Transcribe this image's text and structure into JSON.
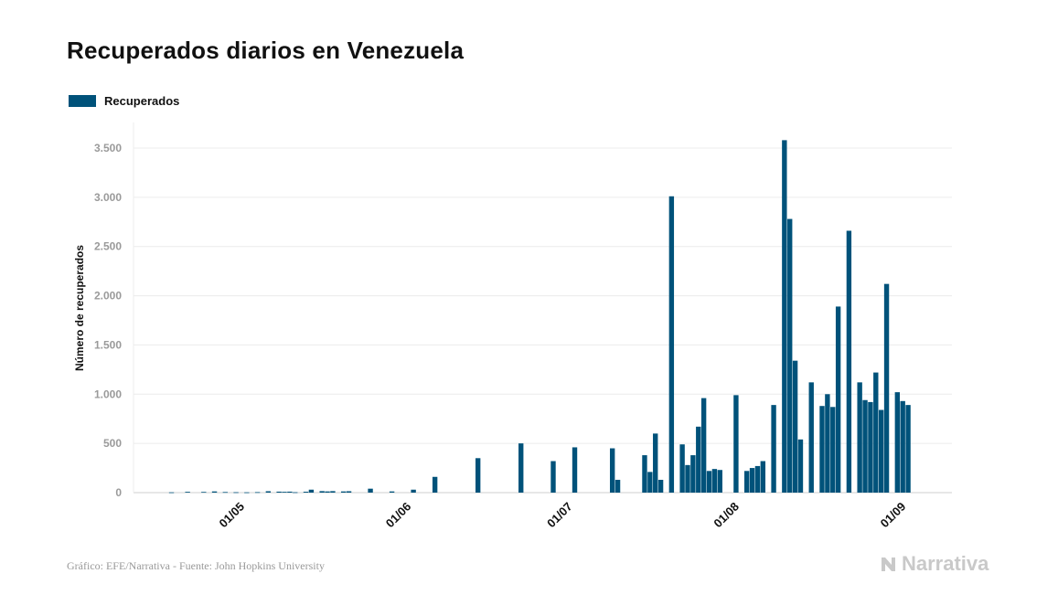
{
  "title": "Recuperados diarios en Venezuela",
  "legend": {
    "label": "Recuperados",
    "color": "#00527a"
  },
  "footer": {
    "source": "Gráfico: EFE/Narrativa - Fuente: John Hopkins University",
    "brand": "Narrativa"
  },
  "chart_data": {
    "type": "bar",
    "title": "Recuperados diarios en Venezuela",
    "ylabel": "Número de recuperados",
    "xlabel": "",
    "ylim": [
      0,
      3700
    ],
    "yticks": [
      0,
      500,
      1000,
      1500,
      2000,
      2500,
      3000,
      3500
    ],
    "ytick_labels": [
      "0",
      "500",
      "1.000",
      "1.500",
      "2.000",
      "2.500",
      "3.000",
      "3.500"
    ],
    "xticks": [
      {
        "label": "01/05",
        "day": 22
      },
      {
        "label": "01/06",
        "day": 53
      },
      {
        "label": "01/07",
        "day": 83
      },
      {
        "label": "01/08",
        "day": 114
      },
      {
        "label": "01/09",
        "day": 145
      }
    ],
    "x_domain": [
      5,
      160
    ],
    "grid": true,
    "legend_position": "top-left",
    "series": [
      {
        "name": "Recuperados",
        "color": "#00527a",
        "points": [
          [
            9,
            3
          ],
          [
            12,
            8
          ],
          [
            15,
            7
          ],
          [
            17,
            12
          ],
          [
            19,
            6
          ],
          [
            21,
            4
          ],
          [
            23,
            3
          ],
          [
            25,
            5
          ],
          [
            27,
            14
          ],
          [
            29,
            10
          ],
          [
            30,
            8
          ],
          [
            31,
            10
          ],
          [
            32,
            4
          ],
          [
            34,
            9
          ],
          [
            35,
            30
          ],
          [
            37,
            15
          ],
          [
            38,
            12
          ],
          [
            39,
            15
          ],
          [
            41,
            12
          ],
          [
            42,
            14
          ],
          [
            46,
            40
          ],
          [
            50,
            12
          ],
          [
            54,
            30
          ],
          [
            58,
            160
          ],
          [
            66,
            350
          ],
          [
            74,
            500
          ],
          [
            80,
            320
          ],
          [
            84,
            460
          ],
          [
            91,
            450
          ],
          [
            92,
            130
          ],
          [
            97,
            380
          ],
          [
            98,
            210
          ],
          [
            99,
            600
          ],
          [
            100,
            130
          ],
          [
            102,
            3010
          ],
          [
            104,
            490
          ],
          [
            105,
            280
          ],
          [
            106,
            380
          ],
          [
            107,
            670
          ],
          [
            108,
            960
          ],
          [
            109,
            220
          ],
          [
            110,
            240
          ],
          [
            111,
            230
          ],
          [
            114,
            990
          ],
          [
            116,
            220
          ],
          [
            117,
            250
          ],
          [
            118,
            270
          ],
          [
            119,
            320
          ],
          [
            121,
            890
          ],
          [
            123,
            3580
          ],
          [
            124,
            2780
          ],
          [
            125,
            1340
          ],
          [
            126,
            540
          ],
          [
            128,
            1120
          ],
          [
            130,
            880
          ],
          [
            131,
            1000
          ],
          [
            132,
            870
          ],
          [
            133,
            1890
          ],
          [
            135,
            2660
          ],
          [
            137,
            1120
          ],
          [
            138,
            940
          ],
          [
            139,
            920
          ],
          [
            140,
            1220
          ],
          [
            141,
            840
          ],
          [
            142,
            2120
          ],
          [
            144,
            1020
          ],
          [
            145,
            930
          ],
          [
            146,
            890
          ]
        ]
      }
    ]
  }
}
